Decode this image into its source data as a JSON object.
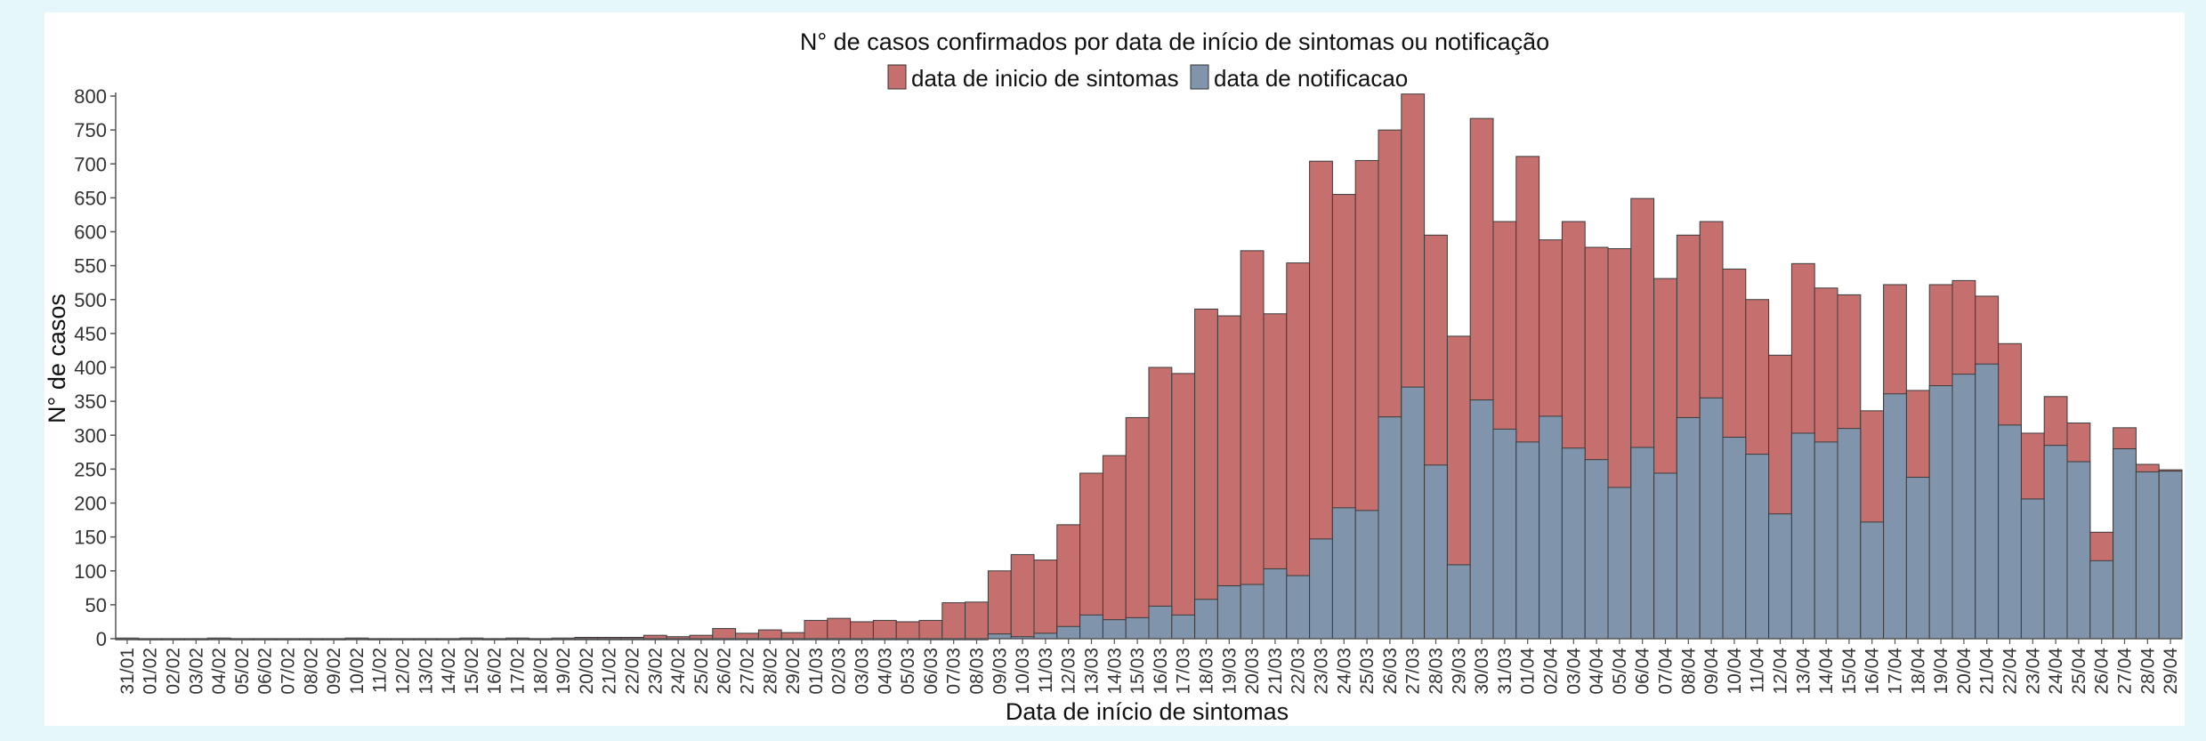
{
  "chart_data": {
    "type": "bar",
    "stacked": false,
    "title": "N° de casos confirmados por data de início de sintomas ou notificação",
    "xlabel": "Data de início de sintomas",
    "ylabel": "N° de casos",
    "ylim": [
      0,
      800
    ],
    "yticks": [
      0,
      50,
      100,
      150,
      200,
      250,
      300,
      350,
      400,
      450,
      500,
      550,
      600,
      650,
      700,
      750,
      800
    ],
    "legend_position": "top",
    "grid": false,
    "categories": [
      "31/01",
      "01/02",
      "02/02",
      "03/02",
      "04/02",
      "05/02",
      "06/02",
      "07/02",
      "08/02",
      "09/02",
      "10/02",
      "11/02",
      "12/02",
      "13/02",
      "14/02",
      "15/02",
      "16/02",
      "17/02",
      "18/02",
      "19/02",
      "20/02",
      "21/02",
      "22/02",
      "23/02",
      "24/02",
      "25/02",
      "26/02",
      "27/02",
      "28/02",
      "29/02",
      "01/03",
      "02/03",
      "03/03",
      "04/03",
      "05/03",
      "06/03",
      "07/03",
      "08/03",
      "09/03",
      "10/03",
      "11/03",
      "12/03",
      "13/03",
      "14/03",
      "15/03",
      "16/03",
      "17/03",
      "18/03",
      "19/03",
      "20/03",
      "21/03",
      "22/03",
      "23/03",
      "24/03",
      "25/03",
      "26/03",
      "27/03",
      "28/03",
      "29/03",
      "30/03",
      "31/03",
      "01/04",
      "02/04",
      "03/04",
      "04/04",
      "05/04",
      "06/04",
      "07/04",
      "08/04",
      "09/04",
      "10/04",
      "11/04",
      "12/04",
      "13/04",
      "14/04",
      "15/04",
      "16/04",
      "17/04",
      "18/04",
      "19/04",
      "20/04",
      "21/04",
      "22/04",
      "23/04",
      "24/04",
      "25/04",
      "26/04",
      "27/04",
      "28/04",
      "29/04"
    ],
    "series": [
      {
        "name": "data de inicio de sintomas",
        "color": "#c5706f",
        "values": [
          1,
          0,
          0,
          0,
          1,
          0,
          0,
          0,
          0,
          0,
          1,
          0,
          0,
          0,
          0,
          1,
          0,
          1,
          0,
          1,
          2,
          2,
          2,
          5,
          3,
          5,
          15,
          8,
          13,
          9,
          27,
          30,
          25,
          27,
          25,
          27,
          53,
          54,
          100,
          124,
          116,
          168,
          244,
          270,
          326,
          400,
          391,
          486,
          476,
          572,
          479,
          554,
          704,
          655,
          705,
          750,
          803,
          595,
          446,
          767,
          615,
          711,
          588,
          615,
          577,
          575,
          649,
          531,
          595,
          615,
          545,
          500,
          418,
          553,
          517,
          507,
          336,
          522,
          366,
          522,
          528,
          505,
          435,
          303,
          357,
          318,
          157,
          311,
          257,
          249
        ]
      },
      {
        "name": "data de notificacao",
        "color": "#8094ab",
        "values": [
          0,
          0,
          0,
          0,
          0,
          0,
          0,
          0,
          0,
          0,
          0,
          0,
          0,
          0,
          0,
          0,
          0,
          0,
          0,
          0,
          0,
          0,
          0,
          0,
          0,
          0,
          0,
          0,
          0,
          0,
          0,
          0,
          0,
          0,
          0,
          0,
          0,
          0,
          7,
          3,
          8,
          18,
          35,
          28,
          31,
          48,
          35,
          58,
          78,
          80,
          103,
          93,
          147,
          193,
          189,
          327,
          371,
          256,
          109,
          352,
          309,
          290,
          328,
          281,
          264,
          223,
          282,
          244,
          326,
          355,
          297,
          272,
          184,
          303,
          290,
          310,
          172,
          361,
          238,
          373,
          390,
          405,
          315,
          206,
          285,
          261,
          115,
          280,
          246,
          247
        ]
      }
    ]
  }
}
